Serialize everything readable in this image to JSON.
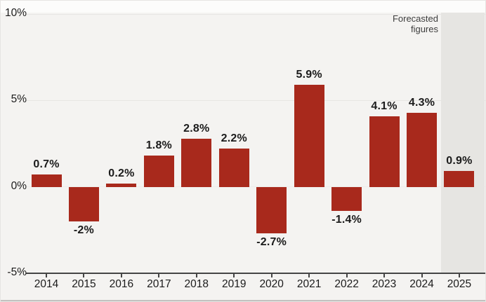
{
  "chart_data": {
    "type": "bar",
    "title": "",
    "xlabel": "",
    "ylabel": "",
    "categories": [
      "2014",
      "2015",
      "2016",
      "2017",
      "2018",
      "2019",
      "2020",
      "2021",
      "2022",
      "2023",
      "2024",
      "2025"
    ],
    "values": [
      0.7,
      -2,
      0.2,
      1.8,
      2.8,
      2.2,
      -2.7,
      5.9,
      -1.4,
      4.1,
      4.3,
      0.9
    ],
    "value_labels": [
      "0.7%",
      "-2%",
      "0.2%",
      "1.8%",
      "2.8%",
      "2.2%",
      "-2.7%",
      "5.9%",
      "-1.4%",
      "4.1%",
      "4.3%",
      "0.9%"
    ],
    "y_ticks": [
      {
        "value": 10,
        "label": "10%"
      },
      {
        "value": 5,
        "label": "5%"
      },
      {
        "value": 0,
        "label": "0%"
      },
      {
        "value": -5,
        "label": "-5%"
      }
    ],
    "ylim": [
      -5,
      10
    ],
    "grid": "horizontal",
    "legend": "none",
    "annotation_lines": [
      "Forecasted",
      "figures"
    ],
    "forecast_categories": [
      "2025"
    ],
    "colors": {
      "bar": "#a8291c",
      "forecast_band": "#e6e5e2",
      "plot_bg": "#f4f3f1",
      "top_strip": "#fcfcfb",
      "axis": "#454545",
      "grid_line": "#e7e6e3",
      "text": "#1b1b1b",
      "annotation_text": "#3d3d3d",
      "bottom_border": "#c3c2c0"
    }
  }
}
